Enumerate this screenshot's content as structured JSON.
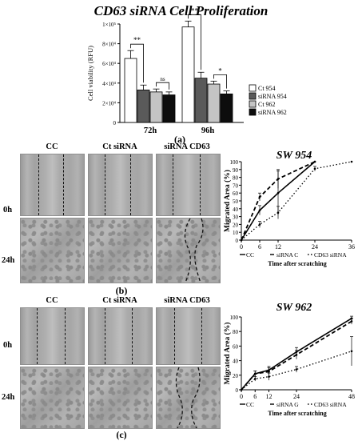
{
  "main_title": "CD63 siRNA Cell Proliferation",
  "panel_labels": {
    "a": "(a)",
    "b": "(b)",
    "c": "(c)"
  },
  "micrograph_columns": [
    "CC",
    "Ct siRNA",
    "siRNA  CD63"
  ],
  "micrograph_rows": [
    "0h",
    "24h"
  ],
  "colors": {
    "ct954": "#ffffff",
    "si954": "#5a5a5a",
    "ct962": "#c4c4c4",
    "si962": "#0d0d0d",
    "line": "#000000"
  },
  "chart_data": [
    {
      "type": "bar",
      "title": "CD63 siRNA Cell Proliferation",
      "ylabel": "Cell viability (RFU)",
      "categories": [
        "72h",
        "96h"
      ],
      "yticks": [
        "0",
        "2×10⁴",
        "4×10⁴",
        "6×10⁴",
        "8×10⁴",
        "1×10⁵"
      ],
      "ylim": [
        0,
        100000
      ],
      "series": [
        {
          "name": "Ct 954",
          "values": [
            65000,
            97000
          ],
          "errors": [
            8000,
            6000
          ]
        },
        {
          "name": "siRNA 954",
          "values": [
            33000,
            45000
          ],
          "errors": [
            5000,
            6000
          ]
        },
        {
          "name": "Ct 962",
          "values": [
            31000,
            39000
          ],
          "errors": [
            3000,
            3000
          ]
        },
        {
          "name": "siRNA 962",
          "values": [
            28000,
            29000
          ],
          "errors": [
            3000,
            3000
          ]
        }
      ],
      "significance": [
        {
          "category": "72h",
          "pair": [
            "Ct 954",
            "siRNA 954"
          ],
          "label": "**"
        },
        {
          "category": "72h",
          "pair": [
            "Ct 962",
            "siRNA 962"
          ],
          "label": "ns"
        },
        {
          "category": "96h",
          "pair": [
            "Ct 954",
            "siRNA 954"
          ],
          "label": "**"
        },
        {
          "category": "96h",
          "pair": [
            "Ct 962",
            "siRNA 962"
          ],
          "label": "*"
        }
      ],
      "legend_position": "right"
    },
    {
      "type": "line",
      "title": "SW 954",
      "xlabel": "Time after scratching",
      "ylabel": "Migrated Area (%)",
      "xticks": [
        0,
        6,
        12,
        24,
        36
      ],
      "yticks": [
        0,
        10,
        20,
        30,
        40,
        50,
        60,
        70,
        80,
        90,
        100
      ],
      "xlim": [
        0,
        36
      ],
      "ylim": [
        0,
        100
      ],
      "legend_labels": [
        "CC",
        "siRNA C",
        "CD63 siRNA"
      ],
      "series": [
        {
          "name": "CC",
          "style": "solid",
          "x": [
            0,
            6,
            12,
            24
          ],
          "y": [
            0,
            38,
            60,
            100
          ],
          "err": [
            0,
            6,
            28,
            0
          ]
        },
        {
          "name": "siRNA C",
          "style": "dashed",
          "x": [
            0,
            6,
            12,
            24
          ],
          "y": [
            0,
            55,
            78,
            100
          ],
          "err": [
            0,
            5,
            12,
            0
          ]
        },
        {
          "name": "CD63 siRNA",
          "style": "dotted",
          "x": [
            0,
            6,
            12,
            24,
            36
          ],
          "y": [
            0,
            20,
            35,
            91,
            100
          ],
          "err": [
            0,
            4,
            8,
            3,
            0
          ]
        }
      ]
    },
    {
      "type": "line",
      "title": "SW 962",
      "xlabel": "Time after scratching",
      "ylabel": "Migrated Area (%)",
      "xticks": [
        0,
        6,
        12,
        24,
        48
      ],
      "yticks": [
        0,
        20,
        40,
        60,
        80,
        100
      ],
      "xlim": [
        0,
        48
      ],
      "ylim": [
        0,
        100
      ],
      "legend_labels": [
        "CC",
        "siRNA G",
        "CD63 siRNA"
      ],
      "series": [
        {
          "name": "CC",
          "style": "solid",
          "x": [
            0,
            6,
            12,
            24,
            48
          ],
          "y": [
            0,
            22,
            27,
            52,
            98
          ],
          "err": [
            0,
            4,
            5,
            6,
            3
          ]
        },
        {
          "name": "siRNA G",
          "style": "dashed",
          "x": [
            0,
            6,
            12,
            24,
            48
          ],
          "y": [
            0,
            22,
            25,
            48,
            94
          ],
          "err": [
            0,
            4,
            5,
            6,
            4
          ]
        },
        {
          "name": "CD63 siRNA",
          "style": "dotted",
          "x": [
            0,
            6,
            12,
            24,
            48
          ],
          "y": [
            0,
            15,
            18,
            28,
            53
          ],
          "err": [
            0,
            3,
            5,
            4,
            20
          ]
        }
      ]
    }
  ]
}
